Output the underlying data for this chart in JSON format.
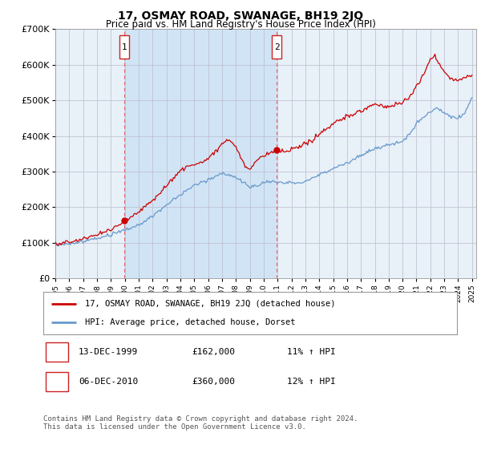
{
  "title": "17, OSMAY ROAD, SWANAGE, BH19 2JQ",
  "subtitle": "Price paid vs. HM Land Registry's House Price Index (HPI)",
  "background_color": "#ffffff",
  "plot_bg_color": "#e8f0f8",
  "shade_color": "#d0e4f5",
  "ylabel_color": "#000000",
  "red_line_color": "#cc0000",
  "blue_line_color": "#6699cc",
  "dashed_line_color": "#dd6666",
  "grid_color": "#cccccc",
  "ylim": [
    0,
    700000
  ],
  "yticks": [
    0,
    100000,
    200000,
    300000,
    400000,
    500000,
    600000,
    700000
  ],
  "ytick_labels": [
    "£0",
    "£100K",
    "£200K",
    "£300K",
    "£400K",
    "£500K",
    "£600K",
    "£700K"
  ],
  "x_start_year": 1995,
  "x_end_year": 2025,
  "sale1_year": 1999.95,
  "sale1_value": 162000,
  "sale2_year": 2010.93,
  "sale2_value": 360000,
  "legend_entry1": "17, OSMAY ROAD, SWANAGE, BH19 2JQ (detached house)",
  "legend_entry2": "HPI: Average price, detached house, Dorset",
  "sale1_date": "13-DEC-1999",
  "sale1_price": "£162,000",
  "sale1_pct": "11% ↑ HPI",
  "sale2_date": "06-DEC-2010",
  "sale2_price": "£360,000",
  "sale2_pct": "12% ↑ HPI",
  "footer": "Contains HM Land Registry data © Crown copyright and database right 2024.\nThis data is licensed under the Open Government Licence v3.0."
}
